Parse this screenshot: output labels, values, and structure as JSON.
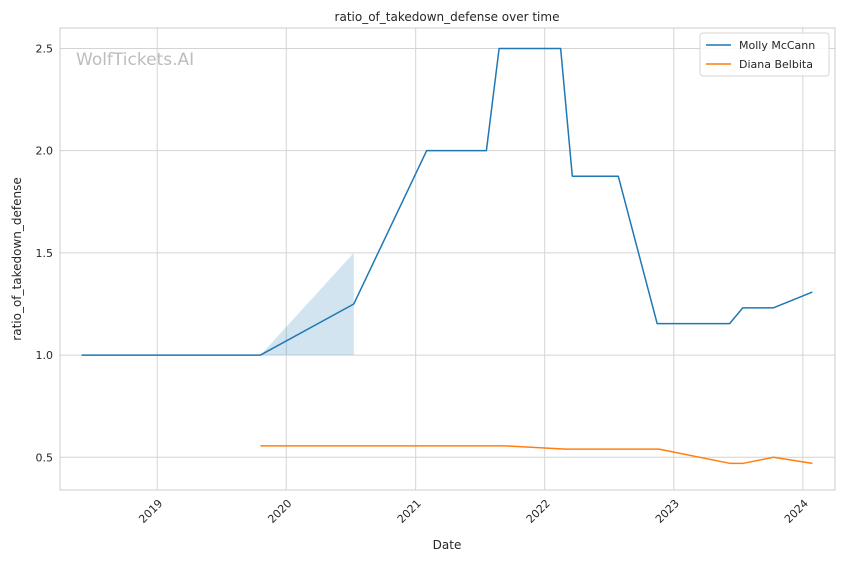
{
  "chart_data": {
    "type": "line",
    "title": "ratio_of_takedown_defense over time",
    "xlabel": "Date",
    "ylabel": "ratio_of_takedown_defense",
    "watermark": "WolfTickets.AI",
    "xlim": [
      "2018-04-01",
      "2024-04-01"
    ],
    "ylim": [
      0.34,
      2.6
    ],
    "x_ticks": [
      "2019-01-01",
      "2020-01-01",
      "2021-01-01",
      "2022-01-01",
      "2023-01-01",
      "2024-01-01"
    ],
    "x_tick_labels": [
      "2019",
      "2020",
      "2021",
      "2022",
      "2023",
      "2024"
    ],
    "y_ticks": [
      0.5,
      1.0,
      1.5,
      2.0,
      2.5
    ],
    "y_tick_labels": [
      "0.5",
      "1.0",
      "1.5",
      "2.0",
      "2.5"
    ],
    "grid": true,
    "legend_position": "top-right",
    "series": [
      {
        "name": "Molly McCann",
        "color": "#1f77b4",
        "points": [
          {
            "x": "2018-06-01",
            "y": 1.0
          },
          {
            "x": "2019-10-20",
            "y": 1.0
          },
          {
            "x": "2020-07-10",
            "y": 1.25
          },
          {
            "x": "2021-02-01",
            "y": 2.0
          },
          {
            "x": "2021-07-20",
            "y": 2.0
          },
          {
            "x": "2021-08-25",
            "y": 2.5
          },
          {
            "x": "2022-02-15",
            "y": 2.5
          },
          {
            "x": "2022-03-20",
            "y": 1.875
          },
          {
            "x": "2022-07-28",
            "y": 1.875
          },
          {
            "x": "2022-11-15",
            "y": 1.154
          },
          {
            "x": "2023-06-08",
            "y": 1.154
          },
          {
            "x": "2023-07-15",
            "y": 1.231
          },
          {
            "x": "2023-10-10",
            "y": 1.231
          },
          {
            "x": "2024-01-28",
            "y": 1.308
          }
        ],
        "band": [
          {
            "x": "2019-10-20",
            "low": 1.0,
            "high": 1.0
          },
          {
            "x": "2020-07-10",
            "low": 1.0,
            "high": 1.5
          }
        ]
      },
      {
        "name": "Diana Belbita",
        "color": "#ff7f0e",
        "points": [
          {
            "x": "2019-10-20",
            "y": 0.556
          },
          {
            "x": "2021-09-10",
            "y": 0.556
          },
          {
            "x": "2022-03-01",
            "y": 0.54
          },
          {
            "x": "2022-11-20",
            "y": 0.54
          },
          {
            "x": "2023-06-10",
            "y": 0.47
          },
          {
            "x": "2023-07-15",
            "y": 0.47
          },
          {
            "x": "2023-10-10",
            "y": 0.5
          },
          {
            "x": "2024-01-28",
            "y": 0.47
          }
        ]
      }
    ]
  }
}
